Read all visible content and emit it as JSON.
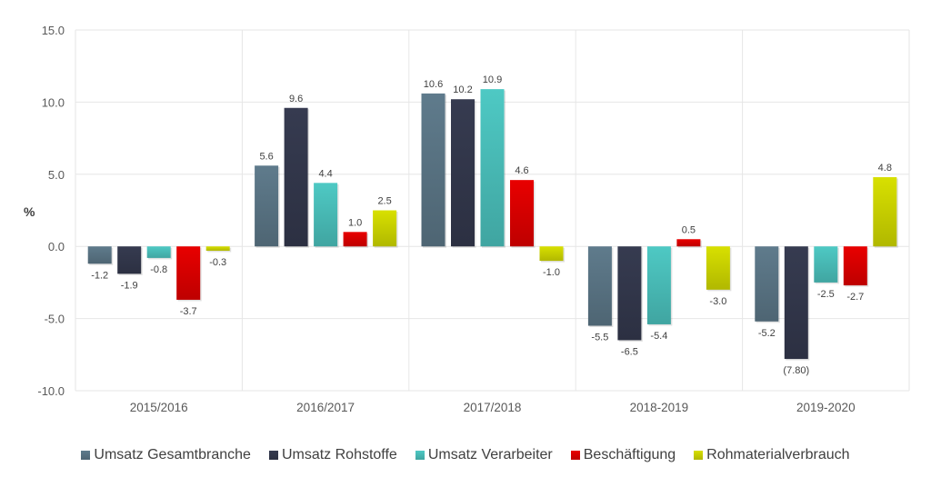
{
  "chart_data": {
    "type": "bar",
    "title": "",
    "xlabel": "",
    "ylabel": "%",
    "ylim": [
      -10,
      15
    ],
    "yticks": [
      "15.0",
      "10.0",
      "5.0",
      "0.0",
      "-5.0",
      "-10.0"
    ],
    "ytick_values": [
      15,
      10,
      5,
      0,
      -5,
      -10
    ],
    "grid": true,
    "legend_position": "bottom",
    "categories": [
      "2015/2016",
      "2016/2017",
      "2017/2018",
      "2018-2019",
      "2019-2020"
    ],
    "series": [
      {
        "name": "Umsatz Gesamtbranche",
        "color": "#5f7b8c",
        "values": [
          -1.2,
          5.6,
          10.6,
          -5.5,
          -5.2
        ],
        "labels": [
          "-1.2",
          "5.6",
          "10.6",
          "-5.5",
          "-5.2"
        ]
      },
      {
        "name": "Umsatz Rohstoffe",
        "color": "#363b50",
        "values": [
          -1.9,
          9.6,
          10.2,
          -6.5,
          -7.8
        ],
        "labels": [
          "-1.9",
          "9.6",
          "10.2",
          "-6.5",
          "(7.80)"
        ]
      },
      {
        "name": "Umsatz Verarbeiter",
        "color": "#4ec9c4",
        "values": [
          -0.8,
          4.4,
          10.9,
          -5.4,
          -2.5
        ],
        "labels": [
          "-0.8",
          "4.4",
          "10.9",
          "-5.4",
          "-2.5"
        ]
      },
      {
        "name": "Beschäftigung",
        "color": "#e80000",
        "values": [
          -3.7,
          1.0,
          4.6,
          0.5,
          -2.7
        ],
        "labels": [
          "-3.7",
          "1.0",
          "4.6",
          "0.5",
          "-2.7"
        ]
      },
      {
        "name": "Rohmaterialverbrauch",
        "color": "#d8e000",
        "values": [
          -0.3,
          2.5,
          -1.0,
          -3.0,
          4.8
        ],
        "labels": [
          "-0.3",
          "2.5",
          "-1.0",
          "-3.0",
          "4.8"
        ]
      }
    ]
  }
}
